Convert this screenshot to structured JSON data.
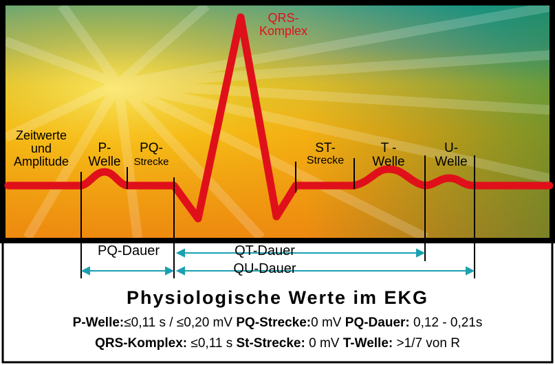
{
  "diagram": {
    "title": "Physiologische Werte im EKG",
    "labels": {
      "qrs_line1": "QRS-",
      "qrs_line2": "Komplex",
      "zeit_line1": "Zeitwerte",
      "zeit_line2": "und",
      "zeit_line3": "Amplitude",
      "p_line1": "P-",
      "p_line2": "Welle",
      "pq_line1": "PQ-",
      "pq_line2": "Strecke",
      "st_line1": "ST-",
      "st_line2": "Strecke",
      "t_line1": "T -",
      "t_line2": "Welle",
      "u_line1": "U-",
      "u_line2": "Welle"
    },
    "durations": {
      "pq": "PQ-Dauer",
      "qt": "QT-Dauer",
      "qu": "QU-Dauer"
    },
    "values_row1": [
      {
        "label": "P-Welle:",
        "value": "≤0,11 s / ≤0,20 mV"
      },
      {
        "label": "PQ-Strecke:",
        "value": "0 mV"
      },
      {
        "label": "PQ-Dauer:",
        "value": "0,12 - 0,21s"
      }
    ],
    "values_row2": [
      {
        "label": "QRS-Komplex:",
        "value": "≤0,11 s"
      },
      {
        "label": "St-Strecke:",
        "value": "0 mV"
      },
      {
        "label": "T-Welle:",
        "value": ">1/7 von R"
      }
    ],
    "colors": {
      "ecg_trace": "#e0101a",
      "arrow": "#1aa0b0",
      "frame": "#000000"
    }
  }
}
